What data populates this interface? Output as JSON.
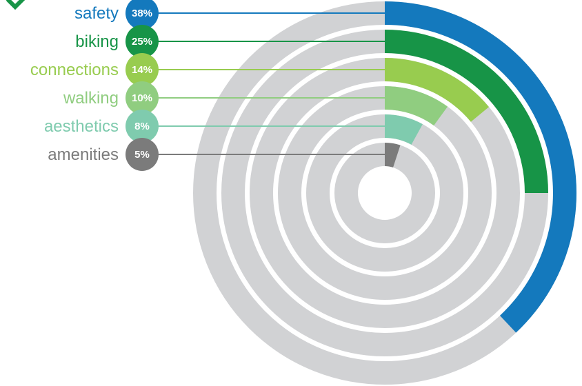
{
  "chart_data": {
    "type": "radial-bar",
    "categories": [
      "safety",
      "biking",
      "connections",
      "walking",
      "aesthetics",
      "amenities"
    ],
    "values": [
      38,
      25,
      14,
      10,
      8,
      5
    ],
    "value_labels": [
      "38%",
      "25%",
      "14%",
      "10%",
      "8%",
      "5%"
    ],
    "colors": [
      "#1479bd",
      "#179447",
      "#98cc4f",
      "#90cd80",
      "#7fcbae",
      "#7b7b7b"
    ],
    "track_color": "#d1d2d4",
    "max_value": 100,
    "legend_placement": "left"
  },
  "decorations": {
    "corner_icon": "chevron-arrow-icon",
    "corner_color": "#179447"
  }
}
